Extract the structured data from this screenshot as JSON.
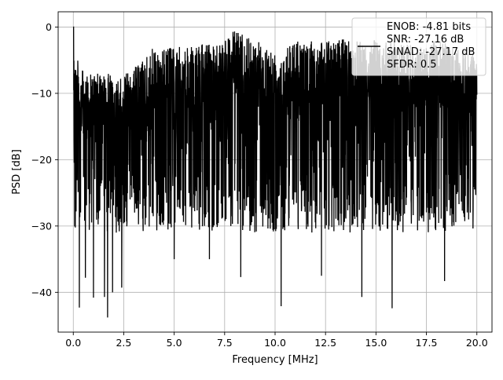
{
  "chart_data": {
    "type": "line",
    "title": "",
    "xlabel": "Frequency [MHz]",
    "ylabel": "PSD [dB]",
    "xlim": [
      -0.75,
      20.75
    ],
    "ylim": [
      -46,
      2.3
    ],
    "x_ticks": [
      0,
      2.5,
      5,
      7.5,
      10,
      12.5,
      15,
      17.5,
      20
    ],
    "x_tick_labels": [
      "0.0",
      "2.5",
      "5.0",
      "7.5",
      "10.0",
      "12.5",
      "15.0",
      "17.5",
      "20.0"
    ],
    "y_ticks": [
      0,
      -10,
      -20,
      -30,
      -40
    ],
    "y_tick_labels": [
      "0",
      "−10",
      "−20",
      "−30",
      "−40"
    ],
    "grid": true,
    "legend_placement": "top-right",
    "legend": {
      "lines": [
        "ENOB: -4.81 bits",
        "SNR: -27.16 dB",
        "SINAD: -27.17 dB",
        "SFDR: 0.5"
      ]
    },
    "series": [
      {
        "color": "#000000",
        "description_of_shape": "dense noise-like PSD trace",
        "x_range": [
          0,
          20
        ],
        "upper_envelope_dB": [
          [
            0,
            0
          ],
          [
            0.1,
            -3
          ],
          [
            0.3,
            -6
          ],
          [
            0.6,
            -7
          ],
          [
            1.0,
            -7
          ],
          [
            1.5,
            -7
          ],
          [
            2.0,
            -7
          ],
          [
            2.5,
            -7
          ],
          [
            3.0,
            -6
          ],
          [
            3.7,
            -4
          ],
          [
            4.0,
            -3
          ],
          [
            5.0,
            -3
          ],
          [
            6.0,
            -3
          ],
          [
            7.0,
            -2
          ],
          [
            7.9,
            -0.5
          ],
          [
            9.0,
            -2
          ],
          [
            10.0,
            -3
          ],
          [
            11.0,
            -2
          ],
          [
            12.0,
            -2
          ],
          [
            13.0,
            -2
          ],
          [
            14.0,
            -1.5
          ],
          [
            15.0,
            -2
          ],
          [
            16.0,
            -2
          ],
          [
            17.0,
            -3
          ],
          [
            18.0,
            -2
          ],
          [
            19.0,
            -3
          ],
          [
            20.0,
            -4
          ]
        ],
        "typical_floor_dB": -27,
        "deep_nulls": [
          {
            "x": 0.3,
            "y": -42.3
          },
          {
            "x": 0.6,
            "y": -37.8
          },
          {
            "x": 1.0,
            "y": -40.8
          },
          {
            "x": 1.55,
            "y": -40.7
          },
          {
            "x": 1.7,
            "y": -43.8
          },
          {
            "x": 1.95,
            "y": -40.0
          },
          {
            "x": 2.4,
            "y": -39.3
          },
          {
            "x": 5.0,
            "y": -35.0
          },
          {
            "x": 6.75,
            "y": -35.0
          },
          {
            "x": 8.3,
            "y": -37.7
          },
          {
            "x": 10.3,
            "y": -42.1
          },
          {
            "x": 12.3,
            "y": -37.5
          },
          {
            "x": 14.3,
            "y": -40.7
          },
          {
            "x": 15.8,
            "y": -42.4
          },
          {
            "x": 18.4,
            "y": -38.3
          }
        ]
      }
    ]
  }
}
